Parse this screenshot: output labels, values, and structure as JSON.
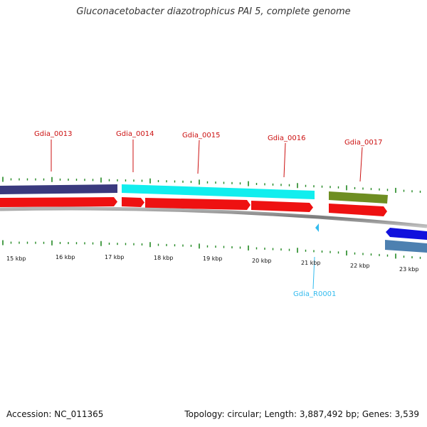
{
  "title": "Gluconacetobacter diazotrophicus PAI 5, complete genome",
  "footer": {
    "accession": "Accession: NC_011365",
    "summary": "Topology: circular; Length: 3,887,492 bp; Genes: 3,539"
  },
  "colors": {
    "cds": "#ee1111",
    "feature_navy": "#3a3a7e",
    "feature_cyan": "#11eeee",
    "feature_olive": "#6e8e22",
    "feature_blue": "#1111dd",
    "feature_steel": "#4d80b0",
    "tick": "#228822",
    "gene_label": "#cc1111",
    "rna_label": "#33bbee",
    "backbone": "#888888"
  },
  "scale_labels": [
    "15 kbp",
    "16 kbp",
    "17 kbp",
    "18 kbp",
    "19 kbp",
    "20 kbp",
    "21 kbp",
    "22 kbp",
    "23 kbp"
  ],
  "gene_labels": [
    "Gdia_0013",
    "Gdia_0014",
    "Gdia_0015",
    "Gdia_0016",
    "Gdia_0017"
  ],
  "rna_labels": [
    "Gdia_R0001"
  ]
}
